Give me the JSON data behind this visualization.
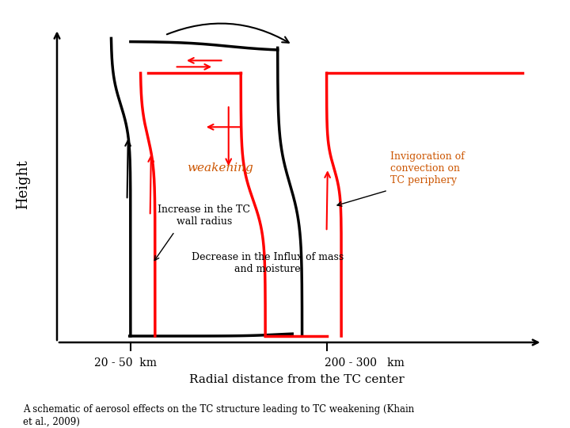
{
  "xlabel": "Radial distance from the TC center",
  "ylabel": "Height",
  "bg_color": "#ffffff",
  "annotation_color": "#cc5500",
  "weakening_text": "weakening",
  "increase_text": "Increase in the TC\nwall radius",
  "invigoration_text": "Invigoration of\nconvection on\nTC periphery",
  "decrease_text": "Decrease in the Influx of mass\nand moisture",
  "bottom_text1": "20 - 50  km",
  "bottom_text2": "200 - 300   km",
  "caption": "A schematic of aerosol effects on the TC structure leading to TC weakening (Khain\net al., 2009)",
  "xlim": [
    0,
    10
  ],
  "ylim": [
    0,
    10
  ]
}
